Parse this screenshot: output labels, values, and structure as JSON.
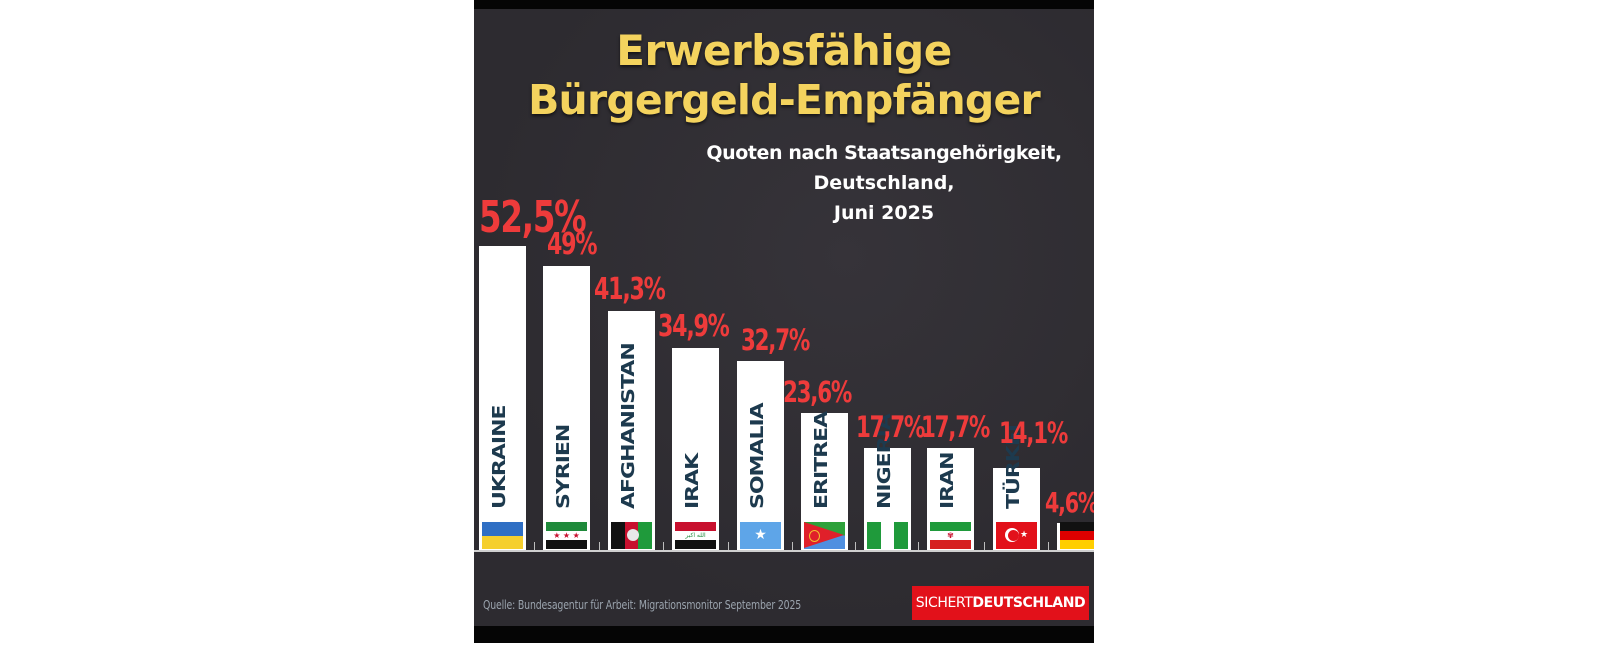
{
  "poster": {
    "title_line1": "Erwerbsfähige",
    "title_line2": "Bürgergeld-Empfänger",
    "subtitle_line1": "Quoten nach Staatsangehörigkeit,",
    "subtitle_line2": "Deutschland,",
    "subtitle_line3": "Juni 2025",
    "source": "Quelle: Bundesagentur für Arbeit: Migrationsmonitor September 2025",
    "logo_light": "SICHERT",
    "logo_bold": "DEUTSCHLAND",
    "colors": {
      "background": "#2d2b30",
      "title": "#f4d35e",
      "value_labels": "#ee3b3b",
      "bars": "#ffffff",
      "bar_text": "#1d3a4e",
      "logo_bg": "#e2111a"
    }
  },
  "chart_data": {
    "type": "bar",
    "title": "Erwerbsfähige Bürgergeld-Empfänger",
    "subtitle": "Quoten nach Staatsangehörigkeit, Deutschland, Juni 2025",
    "xlabel": "",
    "ylabel": "",
    "ylim": [
      0,
      60
    ],
    "grid": false,
    "legend": "none",
    "unit": "%",
    "categories": [
      "UKRAINE",
      "SYRIEN",
      "AFGHANISTAN",
      "IRAK",
      "SOMALIA",
      "ERITREA",
      "NIGERIA",
      "IRAN",
      "TÜRKEI",
      "DEUTSCHLAND"
    ],
    "values": [
      52.5,
      49.0,
      41.3,
      34.9,
      32.7,
      23.6,
      17.7,
      17.7,
      14.1,
      4.6
    ],
    "value_labels": [
      "52,5%",
      "49%",
      "41,3%",
      "34,9%",
      "32,7%",
      "23,6%",
      "17,7%",
      "17,7%",
      "14,1%",
      "4,6%"
    ],
    "bar_names": [
      "UKRAINE",
      "SYRIEN",
      "AFGHANISTAN",
      "IRAK",
      "SOMALIA",
      "ERITREA",
      "NIGERIA",
      "IRAN",
      "TÜRKEI",
      ""
    ],
    "flags": [
      "ukraine-flag",
      "syria-flag",
      "afghanistan-flag",
      "iraq-flag",
      "somalia-flag",
      "eritrea-flag",
      "nigeria-flag",
      "iran-flag",
      "turkey-flag",
      "germany-flag"
    ],
    "source": "Bundesagentur für Arbeit: Migrationsmonitor September 2025"
  }
}
